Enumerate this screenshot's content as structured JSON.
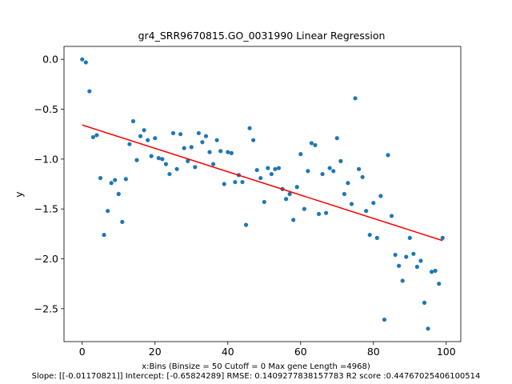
{
  "chart_data": {
    "type": "scatter",
    "title": "gr4_SRR9670815.GO_0031990 Linear Regression",
    "xlabel": "x:Bins  (Binsize = 50 Cutoff = 0 Max gene Length =4968)",
    "ylabel": "y",
    "footer": "Slope: [[-0.01170821]] Intercept: [-0.65824289] RMSE: 0.1409277838157783 R2 score :0.44767025406100514",
    "xlim": [
      -5,
      104
    ],
    "ylim": [
      -2.83,
      0.13
    ],
    "xticks": [
      0,
      20,
      40,
      60,
      80,
      100
    ],
    "yticks": [
      0.0,
      -0.5,
      -1.0,
      -1.5,
      -2.0,
      -2.5
    ],
    "xtick_labels": [
      "0",
      "20",
      "40",
      "60",
      "80",
      "100"
    ],
    "ytick_labels": [
      "0.0",
      "−0.5",
      "−1.0",
      "−1.5",
      "−2.0",
      "−2.5"
    ],
    "colors": {
      "points": "#1f77b4",
      "line": "#ff0000"
    },
    "regression": {
      "slope": -0.01170821,
      "intercept": -0.65824289,
      "x_range": [
        0,
        99
      ]
    },
    "points": [
      [
        0,
        0.0
      ],
      [
        1,
        -0.03
      ],
      [
        2,
        -0.32
      ],
      [
        3,
        -0.78
      ],
      [
        4,
        -0.76
      ],
      [
        5,
        -1.19
      ],
      [
        6,
        -1.76
      ],
      [
        7,
        -1.52
      ],
      [
        8,
        -1.24
      ],
      [
        9,
        -1.21
      ],
      [
        10,
        -1.35
      ],
      [
        11,
        -1.63
      ],
      [
        12,
        -1.2
      ],
      [
        13,
        -0.85
      ],
      [
        14,
        -0.62
      ],
      [
        15,
        -1.01
      ],
      [
        16,
        -0.77
      ],
      [
        17,
        -0.71
      ],
      [
        18,
        -0.81
      ],
      [
        19,
        -0.97
      ],
      [
        20,
        -0.79
      ],
      [
        21,
        -0.99
      ],
      [
        22,
        -1.0
      ],
      [
        23,
        -1.05
      ],
      [
        24,
        -1.15
      ],
      [
        25,
        -0.74
      ],
      [
        26,
        -1.1
      ],
      [
        27,
        -0.75
      ],
      [
        28,
        -0.89
      ],
      [
        29,
        -1.02
      ],
      [
        30,
        -0.88
      ],
      [
        31,
        -1.08
      ],
      [
        32,
        -0.74
      ],
      [
        33,
        -0.83
      ],
      [
        34,
        -0.77
      ],
      [
        35,
        -0.93
      ],
      [
        36,
        -1.05
      ],
      [
        37,
        -0.81
      ],
      [
        38,
        -0.92
      ],
      [
        39,
        -1.25
      ],
      [
        40,
        -0.93
      ],
      [
        41,
        -0.94
      ],
      [
        42,
        -1.23
      ],
      [
        43,
        -1.16
      ],
      [
        44,
        -1.23
      ],
      [
        45,
        -1.66
      ],
      [
        46,
        -0.69
      ],
      [
        47,
        -0.81
      ],
      [
        48,
        -1.11
      ],
      [
        49,
        -1.19
      ],
      [
        50,
        -1.43
      ],
      [
        51,
        -1.09
      ],
      [
        52,
        -1.15
      ],
      [
        53,
        -1.1
      ],
      [
        54,
        -1.09
      ],
      [
        55,
        -1.3
      ],
      [
        56,
        -1.4
      ],
      [
        57,
        -1.35
      ],
      [
        58,
        -1.61
      ],
      [
        59,
        -1.28
      ],
      [
        60,
        -0.95
      ],
      [
        61,
        -1.5
      ],
      [
        62,
        -1.12
      ],
      [
        63,
        -0.84
      ],
      [
        64,
        -0.86
      ],
      [
        65,
        -1.55
      ],
      [
        66,
        -1.15
      ],
      [
        67,
        -1.54
      ],
      [
        68,
        -1.09
      ],
      [
        69,
        -1.12
      ],
      [
        70,
        -0.79
      ],
      [
        71,
        -1.02
      ],
      [
        72,
        -1.35
      ],
      [
        73,
        -1.24
      ],
      [
        74,
        -1.45
      ],
      [
        75,
        -0.39
      ],
      [
        76,
        -1.1
      ],
      [
        77,
        -1.18
      ],
      [
        78,
        -1.52
      ],
      [
        79,
        -1.76
      ],
      [
        80,
        -1.44
      ],
      [
        81,
        -1.79
      ],
      [
        82,
        -1.37
      ],
      [
        83,
        -2.61
      ],
      [
        84,
        -0.96
      ],
      [
        85,
        -1.57
      ],
      [
        86,
        -1.96
      ],
      [
        87,
        -2.07
      ],
      [
        88,
        -2.22
      ],
      [
        89,
        -1.98
      ],
      [
        90,
        -1.79
      ],
      [
        91,
        -1.95
      ],
      [
        92,
        -2.08
      ],
      [
        93,
        -2.02
      ],
      [
        94,
        -2.44
      ],
      [
        95,
        -2.7
      ],
      [
        96,
        -2.13
      ],
      [
        97,
        -2.12
      ],
      [
        98,
        -2.25
      ],
      [
        99,
        -1.79
      ]
    ]
  }
}
